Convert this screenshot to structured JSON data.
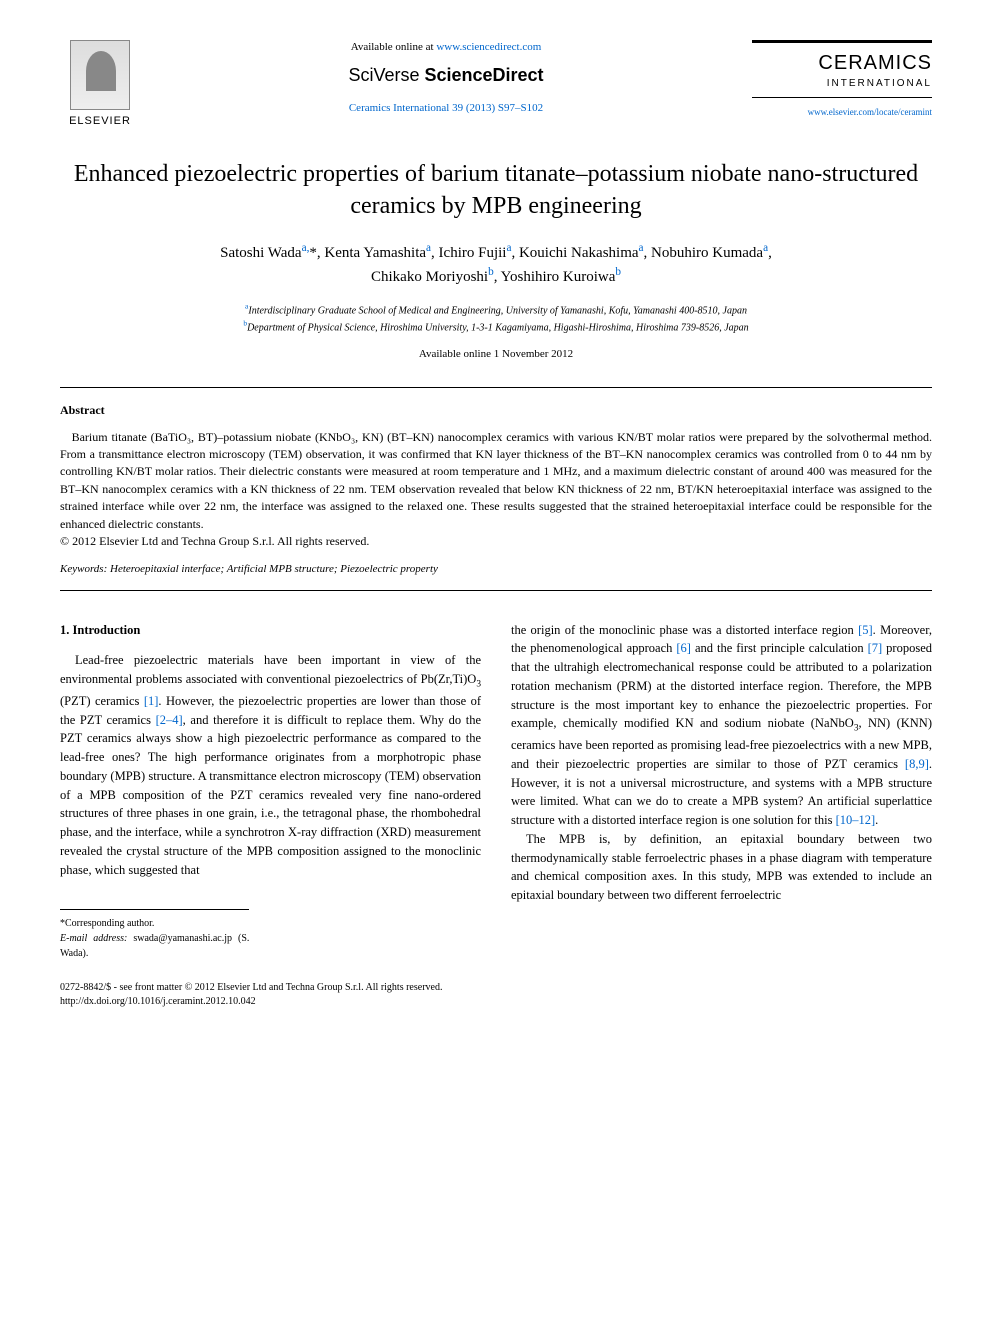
{
  "header": {
    "elsevier_label": "ELSEVIER",
    "available_prefix": "Available online at ",
    "available_url": "www.sciencedirect.com",
    "sciverse_1": "SciVerse ",
    "sciverse_2": "ScienceDirect",
    "journal_ref": "Ceramics International 39 (2013) S97–S102",
    "journal_name": "CERAMICS",
    "journal_sub": "INTERNATIONAL",
    "journal_url": "www.elsevier.com/locate/ceramint"
  },
  "title": "Enhanced piezoelectric properties of barium titanate–potassium niobate nano-structured ceramics by MPB engineering",
  "authors_html": "Satoshi Wada<sup>a,</sup>*, Kenta Yamashita<sup>a</sup>, Ichiro Fujii<sup>a</sup>, Kouichi Nakashima<sup>a</sup>, Nobuhiro Kumada<sup>a</sup>, Chikako Moriyoshi<sup>b</sup>, Yoshihiro Kuroiwa<sup>b</sup>",
  "affiliations": {
    "a": "Interdisciplinary Graduate School of Medical and Engineering, University of Yamanashi, Kofu, Yamanashi 400-8510, Japan",
    "b": "Department of Physical Science, Hiroshima University, 1-3-1 Kagamiyama, Higashi-Hiroshima, Hiroshima 739-8526, Japan"
  },
  "pub_date": "Available online 1 November 2012",
  "abstract_heading": "Abstract",
  "abstract_body": "Barium titanate (BaTiO₃, BT)–potassium niobate (KNbO₃, KN) (BT–KN) nanocomplex ceramics with various KN/BT molar ratios were prepared by the solvothermal method. From a transmittance electron microscopy (TEM) observation, it was confirmed that KN layer thickness of the BT–KN nanocomplex ceramics was controlled from 0 to 44 nm by controlling KN/BT molar ratios. Their dielectric constants were measured at room temperature and 1 MHz, and a maximum dielectric constant of around 400 was measured for the BT–KN nanocomplex ceramics with a KN thickness of 22 nm. TEM observation revealed that below KN thickness of 22 nm, BT/KN heteroepitaxial interface was assigned to the strained interface while over 22 nm, the interface was assigned to the relaxed one. These results suggested that the strained heteroepitaxial interface could be responsible for the enhanced dielectric constants.",
  "copyright_line": "© 2012 Elsevier Ltd and Techna Group S.r.l. All rights reserved.",
  "keywords_label": "Keywords:",
  "keywords_text": " Heteroepitaxial interface; Artificial MPB structure; Piezoelectric property",
  "section1_heading": "1. Introduction",
  "col_left": "Lead-free piezoelectric materials have been important in view of the environmental problems associated with conventional piezoelectrics of Pb(Zr,Ti)O₃ (PZT) ceramics [1]. However, the piezoelectric properties are lower than those of the PZT ceramics [2–4], and therefore it is difficult to replace them. Why do the PZT ceramics always show a high piezoelectric performance as compared to the lead-free ones? The high performance originates from a morphotropic phase boundary (MPB) structure. A transmittance electron microscopy (TEM) observation of a MPB composition of the PZT ceramics revealed very fine nano-ordered structures of three phases in one grain, i.e., the tetragonal phase, the rhombohedral phase, and the interface, while a synchrotron X-ray diffraction (XRD) measurement revealed the crystal structure of the MPB composition assigned to the monoclinic phase, which suggested that",
  "col_right_p1": "the origin of the monoclinic phase was a distorted interface region [5]. Moreover, the phenomenological approach [6] and the first principle calculation [7] proposed that the ultrahigh electromechanical response could be attributed to a polarization rotation mechanism (PRM) at the distorted interface region. Therefore, the MPB structure is the most important key to enhance the piezoelectric properties. For example, chemically modified KN and sodium niobate (NaNbO₃, NN) (KNN) ceramics have been reported as promising lead-free piezoelectrics with a new MPB, and their piezoelectric properties are similar to those of PZT ceramics [8,9]. However, it is not a universal microstructure, and systems with a MPB structure were limited. What can we do to create a MPB system? An artificial superlattice structure with a distorted interface region is one solution for this [10–12].",
  "col_right_p2": "The MPB is, by definition, an epitaxial boundary between two thermodynamically stable ferroelectric phases in a phase diagram with temperature and chemical composition axes. In this study, MPB was extended to include an epitaxial boundary between two different ferroelectric",
  "footnote_corr": "*Corresponding author.",
  "footnote_email_label": "E-mail address:",
  "footnote_email": " swada@yamanashi.ac.jp (S. Wada).",
  "footer_line1": "0272-8842/$ - see front matter © 2012 Elsevier Ltd and Techna Group S.r.l. All rights reserved.",
  "footer_line2": "http://dx.doi.org/10.1016/j.ceramint.2012.10.042",
  "colors": {
    "link": "#0066cc",
    "text": "#000000",
    "bg": "#ffffff"
  }
}
